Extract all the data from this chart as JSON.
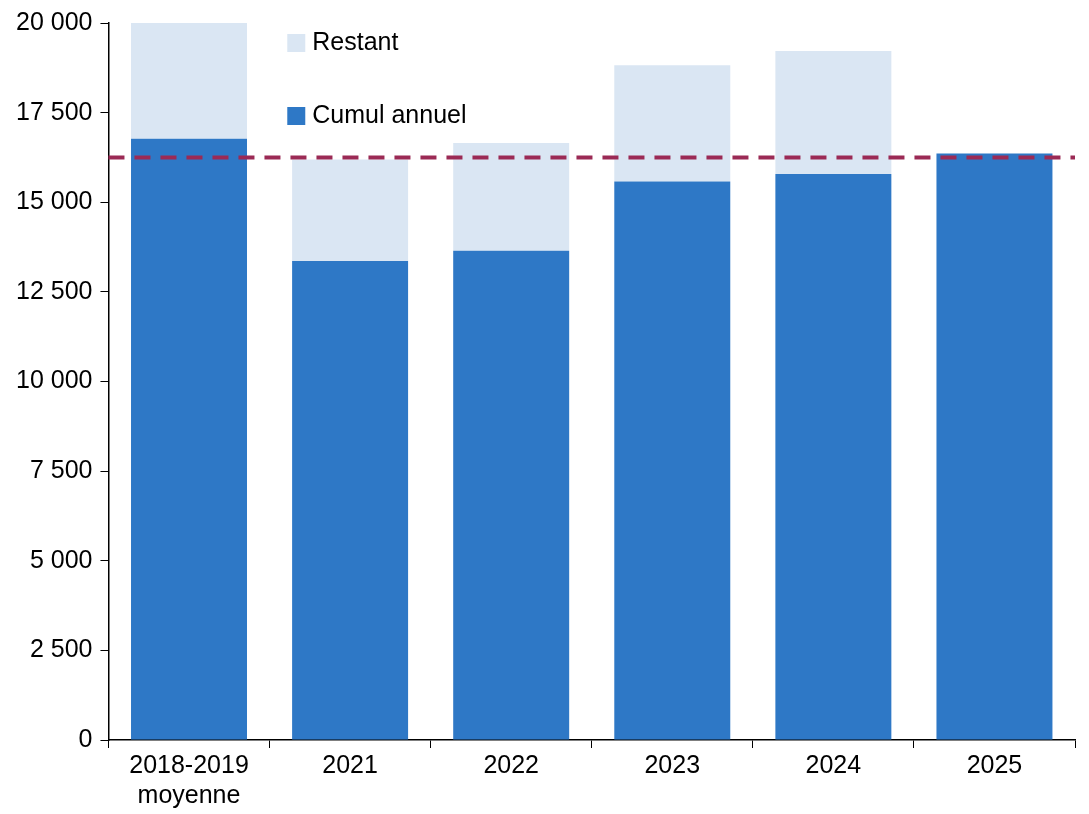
{
  "chart_data": {
    "type": "bar",
    "stacked": true,
    "categories": [
      "2018-2019 moyenne",
      "2021",
      "2022",
      "2023",
      "2024",
      "2025"
    ],
    "series": [
      {
        "name": "Cumul annuel",
        "color": "#2e78c6",
        "values": [
          16770,
          13360,
          13650,
          15580,
          15790,
          16360
        ]
      },
      {
        "name": "Restant",
        "color": "#dae6f3",
        "values": [
          3230,
          2830,
          3000,
          3240,
          3430,
          null
        ]
      }
    ],
    "ylim": [
      0,
      20000
    ],
    "yticks": [
      {
        "value": 0,
        "label": "0"
      },
      {
        "value": 2500,
        "label": "2 500"
      },
      {
        "value": 5000,
        "label": "5 000"
      },
      {
        "value": 7500,
        "label": "7 500"
      },
      {
        "value": 10000,
        "label": "10 000"
      },
      {
        "value": 12500,
        "label": "12 500"
      },
      {
        "value": 15000,
        "label": "15 000"
      },
      {
        "value": 17500,
        "label": "17 500"
      },
      {
        "value": 20000,
        "label": "20 000"
      }
    ],
    "ref_lines": [
      {
        "axis": "y",
        "value": 16250,
        "color": "#9b2a55",
        "line_style": "dashed"
      }
    ],
    "legend": "top left",
    "grid": false
  }
}
